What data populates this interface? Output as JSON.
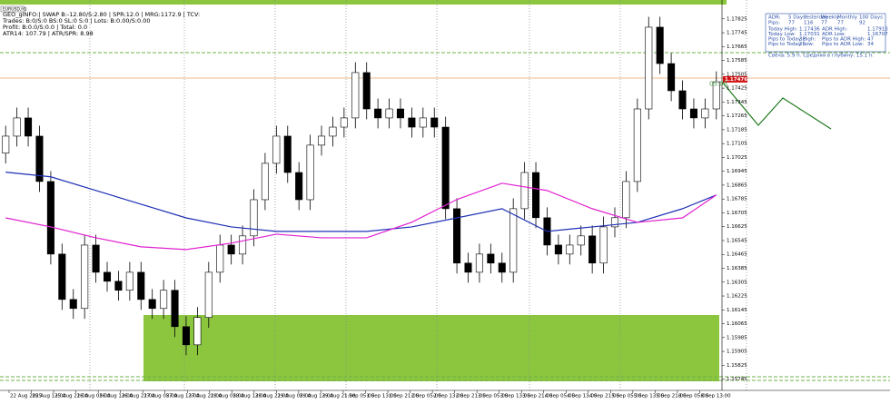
{
  "chart_data": {
    "type": "candlestick",
    "symbol": "EURUSD,H1",
    "header_lines": [
      "GEO_gINFO:| SWAP B:-12.80/S:2.80 | SPR:12.0 | MRG:1172.9 | TCV:",
      "Trades: B:0/S:0 BS:0 SL:0 S:0 | Lots: B:0.00/S:0.00",
      "Profit: B:0.0/S:0.0 | Total: 0.0",
      "ATR14: 107.79 | ATR/SPR: 8.98"
    ],
    "open": [
      1.1705,
      1.17148,
      1.17253,
      1.17148,
      1.16886,
      1.16467,
      1.16205,
      1.16153,
      1.16519,
      1.16362,
      1.1631,
      1.16258,
      1.16362,
      1.16205,
      1.16153,
      1.16258,
      1.16048,
      1.15943,
      1.16101,
      1.16362,
      1.16519,
      1.16467,
      1.16572,
      1.16781,
      1.16991,
      1.17148,
      1.16938,
      1.16781,
      1.17096,
      1.17148,
      1.172,
      1.17253,
      1.17515,
      1.17305,
      1.17253,
      1.17305,
      1.17253,
      1.172,
      1.17253,
      1.172,
      1.16729,
      1.16415,
      1.16362,
      1.16467,
      1.16415,
      1.16362,
      1.16729,
      1.16938,
      1.16677,
      1.16519,
      1.16467,
      1.16519,
      1.16572,
      1.16415,
      1.16624,
      1.16677,
      1.16886,
      1.17305,
      1.17777,
      1.17567,
      1.1741,
      1.17305,
      1.17253,
      1.17305
    ],
    "high": [
      1.17208,
      1.17313,
      1.17313,
      1.17208,
      1.16946,
      1.16527,
      1.16265,
      1.16579,
      1.16579,
      1.16422,
      1.1637,
      1.16422,
      1.16422,
      1.16265,
      1.16318,
      1.16318,
      1.16108,
      1.16161,
      1.16422,
      1.16579,
      1.16579,
      1.16632,
      1.16841,
      1.17051,
      1.17208,
      1.17208,
      1.16998,
      1.17156,
      1.17208,
      1.1726,
      1.17313,
      1.17575,
      1.17575,
      1.17365,
      1.17365,
      1.17365,
      1.17313,
      1.17313,
      1.17313,
      1.1726,
      1.16789,
      1.16475,
      1.16527,
      1.16527,
      1.16475,
      1.16789,
      1.16998,
      1.16998,
      1.16737,
      1.16579,
      1.16579,
      1.16632,
      1.16632,
      1.16684,
      1.16737,
      1.16946,
      1.17365,
      1.17837,
      1.17837,
      1.17627,
      1.1747,
      1.17365,
      1.17365,
      1.17522
    ],
    "low": [
      1.1699,
      1.17088,
      1.17088,
      1.16826,
      1.16407,
      1.16145,
      1.16093,
      1.16093,
      1.16302,
      1.1625,
      1.16198,
      1.16198,
      1.16145,
      1.16093,
      1.16093,
      1.15988,
      1.15883,
      1.15883,
      1.16041,
      1.16302,
      1.16407,
      1.16407,
      1.16512,
      1.16721,
      1.16931,
      1.16878,
      1.16721,
      1.16721,
      1.17036,
      1.17088,
      1.1714,
      1.17193,
      1.17245,
      1.17193,
      1.17193,
      1.17193,
      1.1714,
      1.1714,
      1.1714,
      1.16669,
      1.16355,
      1.16302,
      1.16302,
      1.16355,
      1.16302,
      1.16302,
      1.16669,
      1.16617,
      1.16459,
      1.16407,
      1.16407,
      1.16459,
      1.16355,
      1.16355,
      1.16564,
      1.16617,
      1.16826,
      1.17245,
      1.17507,
      1.1735,
      1.17245,
      1.17193,
      1.17193,
      1.17245
    ],
    "close": [
      1.17148,
      1.17253,
      1.17148,
      1.16886,
      1.16467,
      1.16205,
      1.16153,
      1.16519,
      1.16362,
      1.1631,
      1.16258,
      1.16362,
      1.16205,
      1.16153,
      1.16258,
      1.16048,
      1.15943,
      1.16101,
      1.16362,
      1.16519,
      1.16467,
      1.16572,
      1.16781,
      1.16991,
      1.17148,
      1.16938,
      1.16781,
      1.17096,
      1.17148,
      1.172,
      1.17253,
      1.17515,
      1.17305,
      1.17253,
      1.17305,
      1.17253,
      1.172,
      1.17253,
      1.172,
      1.16729,
      1.16415,
      1.16362,
      1.16467,
      1.16415,
      1.16362,
      1.16729,
      1.16938,
      1.16677,
      1.16519,
      1.16467,
      1.16519,
      1.16572,
      1.16415,
      1.16624,
      1.16677,
      1.16886,
      1.17305,
      1.17777,
      1.17567,
      1.1741,
      1.17305,
      1.17253,
      1.17305,
      1.17462
    ],
    "ma_series": [
      {
        "color": "#1f2fb5",
        "x": [
          0,
          4,
          8,
          12,
          16,
          20,
          24,
          28,
          32,
          36,
          40,
          44,
          48,
          52,
          56,
          60,
          63
        ],
        "values": [
          1.1694,
          1.16913,
          1.16834,
          1.16755,
          1.16676,
          1.16624,
          1.16598,
          1.16598,
          1.16598,
          1.16624,
          1.16676,
          1.16729,
          1.16598,
          1.16624,
          1.1665,
          1.16729,
          1.16808
        ]
      },
      {
        "color": "#e020d0",
        "x": [
          0,
          4,
          8,
          12,
          16,
          20,
          24,
          28,
          32,
          36,
          40,
          44,
          48,
          52,
          56,
          60,
          63
        ],
        "values": [
          1.16676,
          1.16624,
          1.16561,
          1.16509,
          1.16493,
          1.1653,
          1.16582,
          1.16561,
          1.16561,
          1.16651,
          1.16782,
          1.16876,
          1.16834,
          1.16729,
          1.1665,
          1.16676,
          1.16808
        ]
      }
    ],
    "ylim": [
      1.1568,
      1.17934
    ],
    "yticks": [
      1.15745,
      1.15825,
      1.15905,
      1.15985,
      1.16065,
      1.16145,
      1.16225,
      1.16305,
      1.16385,
      1.16465,
      1.16545,
      1.16625,
      1.16705,
      1.16785,
      1.16865,
      1.16945,
      1.17025,
      1.17105,
      1.17185,
      1.17265,
      1.17345,
      1.17425,
      1.17505,
      1.17585,
      1.17665,
      1.17745,
      1.17825
    ],
    "x_labels": [
      "22 Aug 2025",
      "25 Aug 13:00",
      "25 Aug 21:00",
      "26 Aug 05:00",
      "26 Aug 13:00",
      "26 Aug 21:00",
      "27 Aug 05:00",
      "27 Aug 13:00",
      "27 Aug 21:00",
      "28 Aug 05:00",
      "28 Aug 13:00",
      "28 Aug 21:00",
      "29 Aug 05:00",
      "29 Aug 13:00",
      "29 Aug 21:00",
      "1 Sep 05:00",
      "1 Sep 13:00",
      "1 Sep 21:00",
      "2 Sep 05:00",
      "2 Sep 13:00",
      "2 Sep 21:00",
      "3 Sep 05:00",
      "3 Sep 13:00",
      "3 Sep 21:00",
      "4 Sep 05:00",
      "4 Sep 13:00",
      "4 Sep 21:00",
      "5 Sep 05:00",
      "5 Sep 13:00",
      "5 Sep 21:00",
      "8 Sep 05:00",
      "8 Sep 13:00"
    ],
    "current_price": 1.17476,
    "timer": "05:05",
    "info_panel": {
      "header": [
        "ADR:",
        "5 Days",
        "Yesterday",
        "Weekly",
        "Monthly",
        "100 Days"
      ],
      "pips": [
        "Pips:",
        "77",
        "116",
        "77",
        "77",
        "92"
      ],
      "rows": [
        [
          "Today High:",
          "1.17436",
          "ADR High:",
          "1.17913"
        ],
        [
          "Today Low:",
          "1.17031",
          "ADR Low:",
          "1.16707"
        ],
        [
          "Pips to Today High:",
          "32",
          "Pips to ADR High:",
          "47"
        ],
        [
          "Pips to Today Low:",
          "23",
          "Pips to ADR Low:",
          "34"
        ]
      ],
      "footer": "Свеча: 5.9 п. Средняя в глубину: 15.1 п."
    }
  }
}
